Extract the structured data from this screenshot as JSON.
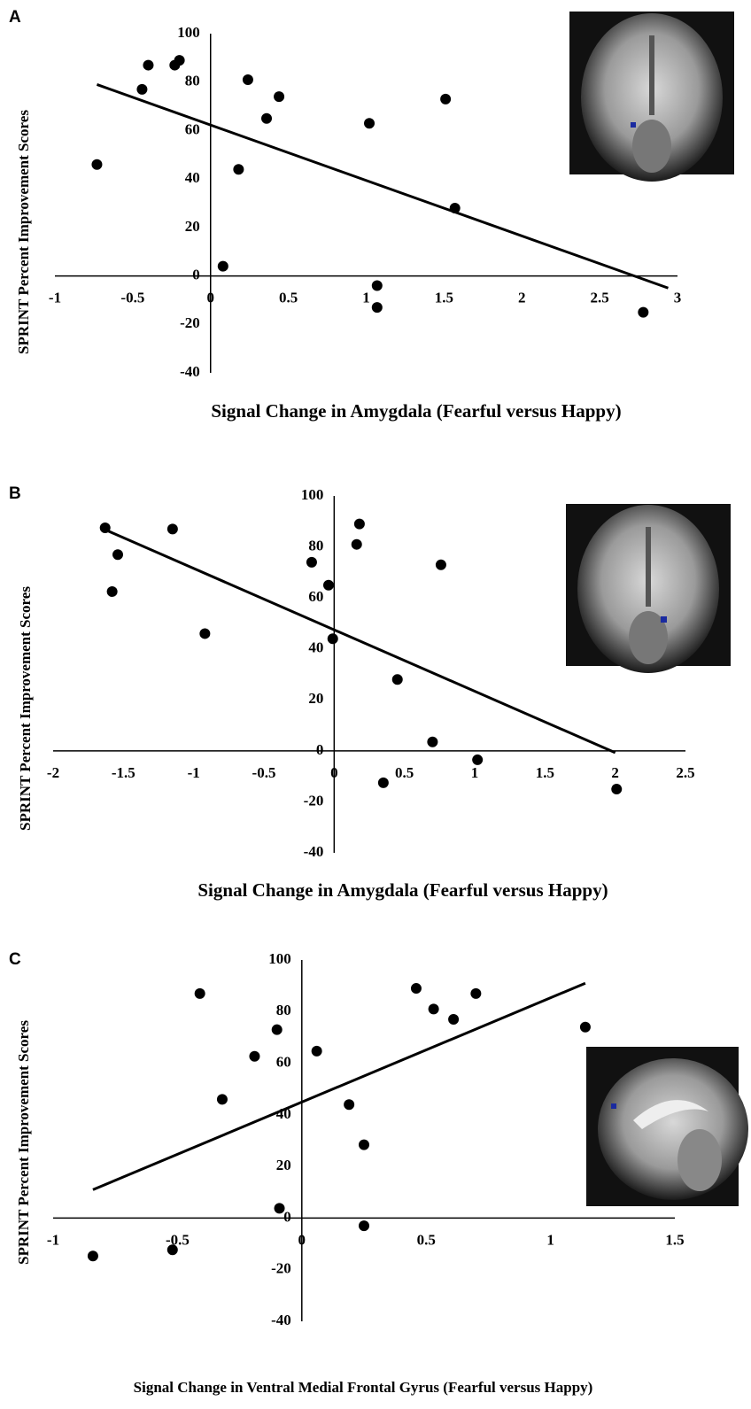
{
  "chart_data": [
    {
      "type": "scatter",
      "label": "A",
      "x_label": "Signal Change in Amygdala (Fearful versus Happy)",
      "y_label": "SPRINT Percent Improvement Scores",
      "x": [
        -0.73,
        -0.44,
        -0.4,
        -0.23,
        -0.2,
        0.24,
        0.18,
        0.44,
        0.36,
        0.08,
        1.02,
        1.07,
        1.07,
        1.51,
        1.57,
        2.78
      ],
      "values": [
        46,
        77,
        87,
        87,
        89,
        81,
        44,
        74,
        65,
        4,
        63,
        -4,
        -13,
        73,
        28,
        -15
      ],
      "trendline": {
        "x": [
          -0.73,
          2.94
        ],
        "y": [
          79,
          -5
        ]
      },
      "color": "#000000",
      "xlim": [
        -1,
        3
      ],
      "ylim": [
        -40,
        100
      ],
      "xticks": [
        -1,
        -0.5,
        0,
        0.5,
        1,
        1.5,
        2,
        2.5,
        3
      ],
      "yticks": [
        -40,
        -20,
        0,
        20,
        40,
        60,
        80,
        100
      ]
    },
    {
      "type": "scatter",
      "label": "B",
      "x_label": "Signal Change in Amygdala (Fearful versus Happy)",
      "y_label": "SPRINT Percent Improvement Scores",
      "x": [
        -1.63,
        -1.54,
        -1.58,
        -1.15,
        -0.92,
        -0.16,
        -0.04,
        -0.01,
        0.16,
        0.18,
        0.45,
        0.76,
        0.35,
        0.7,
        1.02,
        2.01
      ],
      "values": [
        87.5,
        77,
        62.5,
        87,
        46,
        74,
        65,
        44,
        81,
        89,
        28,
        73,
        -12.5,
        3.5,
        -3.5,
        -15
      ],
      "trendline": {
        "x": [
          -1.64,
          2.0
        ],
        "y": [
          87,
          -0.7
        ]
      },
      "color": "#000000",
      "xlim": [
        -2,
        2.5
      ],
      "ylim": [
        -40,
        100
      ],
      "xticks": [
        -2,
        -1.5,
        -1,
        -0.5,
        0,
        0.5,
        1,
        1.5,
        2,
        2.5
      ],
      "yticks": [
        -40,
        -20,
        0,
        20,
        40,
        60,
        80,
        100
      ]
    },
    {
      "type": "scatter",
      "label": "C",
      "x_label": "Signal Change in Ventral Medial Frontal Gyrus (Fearful versus Happy)",
      "y_label": "SPRINT Percent Improvement Scores",
      "x": [
        -0.84,
        -0.52,
        -0.41,
        -0.32,
        -0.19,
        -0.1,
        -0.09,
        0.06,
        0.19,
        0.25,
        0.25,
        0.46,
        0.53,
        0.61,
        0.7,
        1.14
      ],
      "values": [
        -14.7,
        -12.3,
        87,
        46,
        62.7,
        73,
        3.8,
        64.7,
        44,
        28.4,
        -3,
        89,
        81,
        77,
        87,
        74
      ],
      "trendline": {
        "x": [
          -0.84,
          1.14
        ],
        "y": [
          11,
          91
        ]
      },
      "color": "#000000",
      "xlim": [
        -1,
        1.5
      ],
      "ylim": [
        -40,
        100
      ],
      "xticks": [
        -1,
        -0.5,
        0,
        0.5,
        1,
        1.5
      ],
      "yticks": [
        -40,
        -20,
        0,
        20,
        40,
        60,
        80,
        100
      ]
    }
  ]
}
